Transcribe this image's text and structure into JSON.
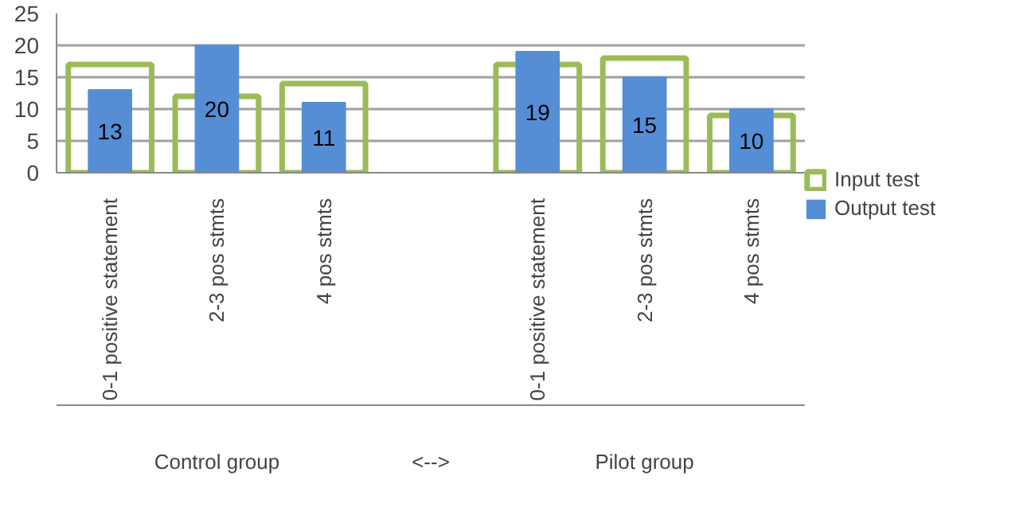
{
  "chart_data": {
    "type": "bar",
    "categories": [
      "0-1 positive statement",
      "2-3 pos stmts",
      "4 pos stmts",
      null,
      "0-1 positive statement",
      "2-3 pos stmts",
      "4 pos stmts"
    ],
    "series": [
      {
        "name": "Input test",
        "color": "#9bbb59",
        "values": [
          17,
          12,
          14,
          null,
          17,
          18,
          9
        ]
      },
      {
        "name": "Output test",
        "color": "#558ed5",
        "values": [
          13,
          20,
          11,
          null,
          19,
          15,
          10
        ],
        "value_labels": [
          "13",
          "20",
          "11",
          null,
          "19",
          "15",
          "10"
        ]
      }
    ],
    "annotations": [
      "Control group",
      "<-->",
      "Pilot group"
    ],
    "ylim": [
      0,
      25
    ],
    "yticks": [
      0,
      5,
      10,
      15,
      20,
      25
    ],
    "grid": "y",
    "legend": "right"
  }
}
